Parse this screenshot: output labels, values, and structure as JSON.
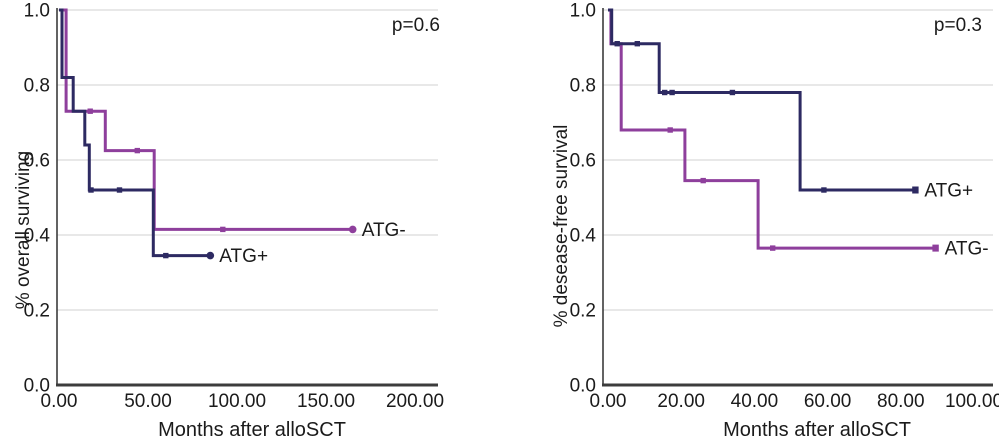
{
  "style": {
    "background": "#ffffff",
    "grid_color": "#d9d9d9",
    "axis_color": "#3c3c3c",
    "text_color": "#1b1b1b",
    "navy": "#2d2a62",
    "purple": "#8e3f9c"
  },
  "chart_data": [
    {
      "type": "line",
      "subtype": "kaplan-meier-step",
      "p_label": "p=0.6",
      "xlabel": "Months after alloSCT",
      "ylabel": "% overall surviving",
      "xlim": [
        0,
        200
      ],
      "ylim": [
        0.0,
        1.0
      ],
      "grid": "horizontal",
      "legend": "end-of-curve labels",
      "xtick_values": [
        0,
        50,
        100,
        150,
        200
      ],
      "xtick_labels": [
        "0.00",
        "50.00",
        "100.00",
        "150.00",
        "200.00"
      ],
      "ytick_values": [
        0.0,
        0.2,
        0.4,
        0.6,
        0.8,
        1.0
      ],
      "ytick_labels": [
        "0.0",
        "0.2",
        "0.4",
        "0.6",
        "0.8",
        "1.0"
      ],
      "series": [
        {
          "name": "ATG-",
          "slug": "atg-minus",
          "color": "#8e3f9c",
          "steps": [
            [
              0,
              1.0
            ],
            [
              4,
              1.0
            ],
            [
              4,
              0.73
            ],
            [
              26,
              0.73
            ],
            [
              26,
              0.625
            ],
            [
              53.5,
              0.625
            ],
            [
              53.5,
              0.415
            ],
            [
              165,
              0.415
            ]
          ],
          "censor_marks": [
            [
              17.5,
              0.73
            ],
            [
              44,
              0.625
            ],
            [
              92,
              0.415
            ]
          ],
          "end_marker": "circle"
        },
        {
          "name": "ATG+",
          "slug": "atg-plus",
          "color": "#2d2a62",
          "steps": [
            [
              0,
              1.0
            ],
            [
              1.7,
              1.0
            ],
            [
              1.7,
              0.82
            ],
            [
              8,
              0.82
            ],
            [
              8,
              0.73
            ],
            [
              14.5,
              0.73
            ],
            [
              14.5,
              0.64
            ],
            [
              17,
              0.64
            ],
            [
              17,
              0.52
            ],
            [
              53,
              0.52
            ],
            [
              53,
              0.345
            ],
            [
              85,
              0.345
            ]
          ],
          "censor_marks": [
            [
              18,
              0.52
            ],
            [
              34,
              0.52
            ],
            [
              60,
              0.345
            ]
          ],
          "end_marker": "circle"
        }
      ]
    },
    {
      "type": "line",
      "subtype": "kaplan-meier-step",
      "p_label": "p=0.3",
      "xlabel": "Months after alloSCT",
      "ylabel": "% desease-free survival",
      "xlim": [
        0,
        100
      ],
      "ylim": [
        0.0,
        1.0
      ],
      "grid": "horizontal",
      "legend": "end-of-curve labels",
      "xtick_values": [
        0,
        20,
        40,
        60,
        80,
        100
      ],
      "xtick_labels": [
        "0.00",
        "20.00",
        "40.00",
        "60.00",
        "80.00",
        "100.00"
      ],
      "ytick_values": [
        0.0,
        0.2,
        0.4,
        0.6,
        0.8,
        1.0
      ],
      "ytick_labels": [
        "0.0",
        "0.2",
        "0.4",
        "0.6",
        "0.8",
        "1.0"
      ],
      "series": [
        {
          "name": "ATG-",
          "slug": "atg-minus",
          "color": "#8e3f9c",
          "steps": [
            [
              0,
              1.0
            ],
            [
              0.8,
              1.0
            ],
            [
              0.8,
              0.91
            ],
            [
              3.6,
              0.91
            ],
            [
              3.6,
              0.68
            ],
            [
              21,
              0.68
            ],
            [
              21,
              0.545
            ],
            [
              41,
              0.545
            ],
            [
              41,
              0.365
            ],
            [
              89.5,
              0.365
            ]
          ],
          "censor_marks": [
            [
              17,
              0.68
            ],
            [
              26,
              0.545
            ],
            [
              45,
              0.365
            ]
          ],
          "end_marker": "square"
        },
        {
          "name": "ATG+",
          "slug": "atg-plus",
          "color": "#2d2a62",
          "steps": [
            [
              0,
              1.0
            ],
            [
              1,
              1.0
            ],
            [
              1,
              0.91
            ],
            [
              14,
              0.91
            ],
            [
              14,
              0.78
            ],
            [
              52.5,
              0.78
            ],
            [
              52.5,
              0.52
            ],
            [
              84,
              0.52
            ]
          ],
          "censor_marks": [
            [
              2.5,
              0.91
            ],
            [
              8,
              0.91
            ],
            [
              15.5,
              0.78
            ],
            [
              17.5,
              0.78
            ],
            [
              34,
              0.78
            ],
            [
              59,
              0.52
            ]
          ],
          "end_marker": "square"
        }
      ]
    }
  ]
}
